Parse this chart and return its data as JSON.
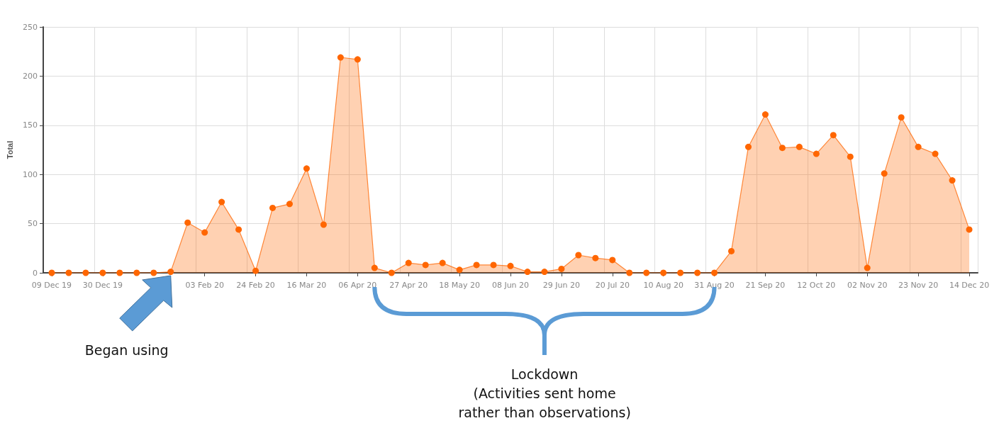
{
  "chart_data": {
    "type": "area",
    "ylabel": "Total",
    "categories": [
      "09 Dec 19",
      null,
      null,
      "30 Dec 19",
      null,
      null,
      null,
      null,
      null,
      "03 Feb 20",
      null,
      null,
      "24 Feb 20",
      null,
      null,
      "16 Mar 20",
      null,
      null,
      "06 Apr 20",
      null,
      null,
      "27 Apr 20",
      null,
      null,
      "18 May 20",
      null,
      null,
      "08 Jun 20",
      null,
      null,
      "29 Jun 20",
      null,
      null,
      "20 Jul 20",
      null,
      null,
      "10 Aug 20",
      null,
      null,
      "31 Aug 20",
      null,
      null,
      "21 Sep 20",
      null,
      null,
      "12 Oct 20",
      null,
      null,
      "02 Nov 20",
      null,
      null,
      "23 Nov 20",
      null,
      null,
      "14 Dec 20"
    ],
    "series": [
      {
        "color": "#ff6600",
        "values": [
          0,
          0,
          0,
          0,
          0,
          0,
          0,
          1,
          51,
          41,
          72,
          44,
          2,
          66,
          70,
          106,
          49,
          219,
          217,
          5,
          0,
          10,
          8,
          10,
          3,
          8,
          8,
          7,
          1,
          1,
          4,
          18,
          15,
          13,
          0,
          0,
          0,
          0,
          0,
          0,
          22,
          128,
          161,
          127,
          128,
          121,
          140,
          118,
          5,
          101,
          158,
          128,
          121,
          94,
          44
        ]
      }
    ],
    "ylim": [
      0,
      250
    ],
    "yticks": [
      0,
      50,
      100,
      150,
      200,
      250
    ],
    "grid": true,
    "marker": "circle",
    "annotations": [
      "Began using",
      "Lockdown\n(Activities sent home\nrather than observations)"
    ]
  }
}
